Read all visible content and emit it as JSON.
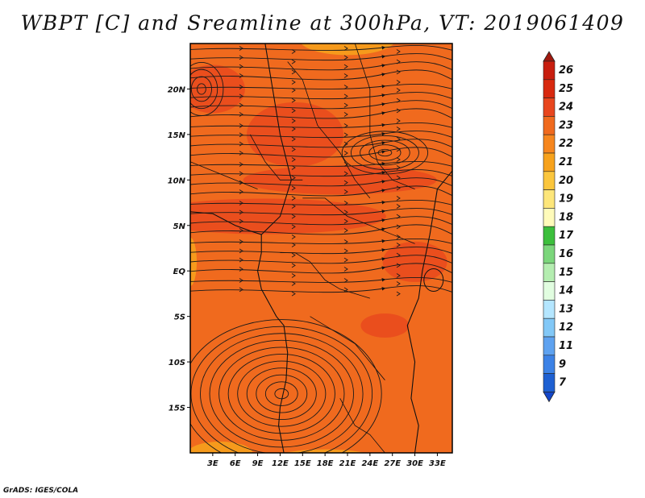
{
  "title": "WBPT [C] and Sreamline at 300hPa, VT: 2019061409",
  "credit": "GrADS: IGES/COLA",
  "map": {
    "x_range": [
      0,
      35
    ],
    "y_range": [
      -20,
      25
    ],
    "lat_ticks": [
      {
        "value": 20,
        "label": "20N"
      },
      {
        "value": 15,
        "label": "15N"
      },
      {
        "value": 10,
        "label": "10N"
      },
      {
        "value": 5,
        "label": "5N"
      },
      {
        "value": 0,
        "label": "EQ"
      },
      {
        "value": -5,
        "label": "5S"
      },
      {
        "value": -10,
        "label": "10S"
      },
      {
        "value": -15,
        "label": "15S"
      }
    ],
    "lon_ticks": [
      {
        "value": 3,
        "label": "3E"
      },
      {
        "value": 6,
        "label": "6E"
      },
      {
        "value": 9,
        "label": "9E"
      },
      {
        "value": 12,
        "label": "12E"
      },
      {
        "value": 15,
        "label": "15E"
      },
      {
        "value": 18,
        "label": "18E"
      },
      {
        "value": 21,
        "label": "21E"
      },
      {
        "value": 24,
        "label": "24E"
      },
      {
        "value": 27,
        "label": "27E"
      },
      {
        "value": 30,
        "label": "30E"
      },
      {
        "value": 33,
        "label": "33E"
      }
    ],
    "base_color": "#f06a1e",
    "warm_color": "#e8461e",
    "cool_color": "#f7a21c"
  },
  "colorbar": {
    "levels": [
      {
        "label": "26",
        "color": "#c81e0f"
      },
      {
        "label": "25",
        "color": "#d8290f"
      },
      {
        "label": "24",
        "color": "#e8461e"
      },
      {
        "label": "23",
        "color": "#f06a1e"
      },
      {
        "label": "22",
        "color": "#f6861e"
      },
      {
        "label": "21",
        "color": "#f7a21c"
      },
      {
        "label": "20",
        "color": "#fbc63d"
      },
      {
        "label": "19",
        "color": "#fde67a"
      },
      {
        "label": "18",
        "color": "#fffbba"
      },
      {
        "label": "17",
        "color": "#3cbf3c"
      },
      {
        "label": "16",
        "color": "#7bd67b"
      },
      {
        "label": "15",
        "color": "#b4edb0"
      },
      {
        "label": "14",
        "color": "#e1fde0"
      },
      {
        "label": "13",
        "color": "#b4e6ff"
      },
      {
        "label": "12",
        "color": "#82c8f7"
      },
      {
        "label": "11",
        "color": "#5ea2f0"
      },
      {
        "label": "9",
        "color": "#3c82e6"
      },
      {
        "label": "7",
        "color": "#1e60d2"
      }
    ],
    "top_color": "#a0190f",
    "bottom_color": "#1446c8"
  }
}
